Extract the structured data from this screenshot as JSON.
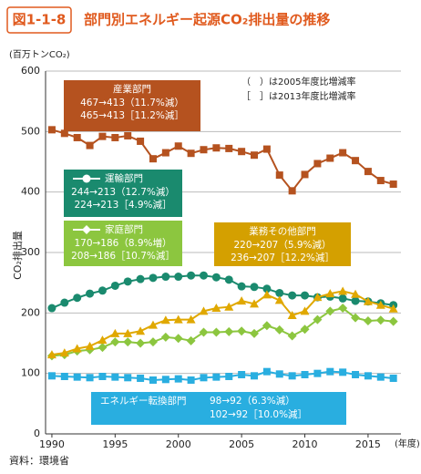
{
  "figure_number": "図1-1-8",
  "source": "資料：環境省",
  "chart_data": {
    "type": "line",
    "title": "部門別エネルギー起源CO₂排出量の推移",
    "y_unit": "(百万トンCO₂)",
    "y_label": "CO₂排出量",
    "x_unit": "(年度)",
    "notes": [
      "（　）は2005年度比増減率",
      "［　］は2013年度比増減率"
    ],
    "x": [
      1990,
      1991,
      1992,
      1993,
      1994,
      1995,
      1996,
      1997,
      1998,
      1999,
      2000,
      2001,
      2002,
      2003,
      2004,
      2005,
      2006,
      2007,
      2008,
      2009,
      2010,
      2011,
      2012,
      2013,
      2014,
      2015,
      2016,
      2017
    ],
    "xlim": [
      1989.5,
      2017.6
    ],
    "xticks": [
      1990,
      1995,
      2000,
      2005,
      2010,
      2015
    ],
    "ylim": [
      0,
      600
    ],
    "yticks": [
      0,
      100,
      200,
      300,
      400,
      500,
      600
    ],
    "grid": true,
    "series": [
      {
        "name": "産業部門",
        "color": "#b5521f",
        "marker": "square",
        "annotation": [
          "467→413（11.7%減）",
          "465→413［11.2%減］"
        ],
        "values": [
          503,
          497,
          490,
          477,
          492,
          490,
          493,
          484,
          455,
          465,
          476,
          464,
          470,
          473,
          472,
          467,
          461,
          471,
          428,
          402,
          429,
          447,
          456,
          465,
          452,
          434,
          419,
          413
        ]
      },
      {
        "name": "運輸部門",
        "color": "#1a8a6e",
        "marker": "circle",
        "annotation": [
          "244→213（12.7%減）",
          "224→213［4.9%減］"
        ],
        "values": [
          208,
          217,
          225,
          232,
          237,
          245,
          252,
          256,
          258,
          260,
          260,
          262,
          262,
          259,
          255,
          244,
          243,
          240,
          233,
          229,
          229,
          226,
          227,
          224,
          220,
          219,
          216,
          213
        ]
      },
      {
        "name": "家庭部門",
        "color": "#8cc63f",
        "marker": "diamond",
        "annotation": [
          "170→186（8.9%増）",
          "208→186［10.7%減］"
        ],
        "values": [
          129,
          131,
          137,
          139,
          143,
          152,
          152,
          150,
          152,
          160,
          158,
          154,
          168,
          168,
          169,
          170,
          166,
          179,
          172,
          162,
          173,
          189,
          203,
          208,
          192,
          187,
          188,
          186
        ]
      },
      {
        "name": "業務その他部門",
        "color": "#e0a800",
        "marker": "triangle",
        "annotation": [
          "220→207（5.9%減）",
          "236→207［12.2%減］"
        ],
        "values": [
          131,
          134,
          141,
          145,
          155,
          166,
          166,
          170,
          180,
          188,
          189,
          189,
          203,
          208,
          210,
          220,
          215,
          230,
          221,
          196,
          203,
          226,
          232,
          236,
          231,
          219,
          213,
          207
        ]
      },
      {
        "name": "エネルギー転換部門",
        "color": "#29aee0",
        "marker": "square",
        "annotation": [
          "98→92（6.3%減）",
          "102→92［10.0%減］"
        ],
        "values": [
          96,
          95,
          94,
          93,
          95,
          94,
          93,
          92,
          89,
          90,
          91,
          89,
          93,
          94,
          95,
          98,
          96,
          103,
          99,
          96,
          98,
          100,
          103,
          102,
          98,
          96,
          94,
          92
        ]
      }
    ]
  }
}
